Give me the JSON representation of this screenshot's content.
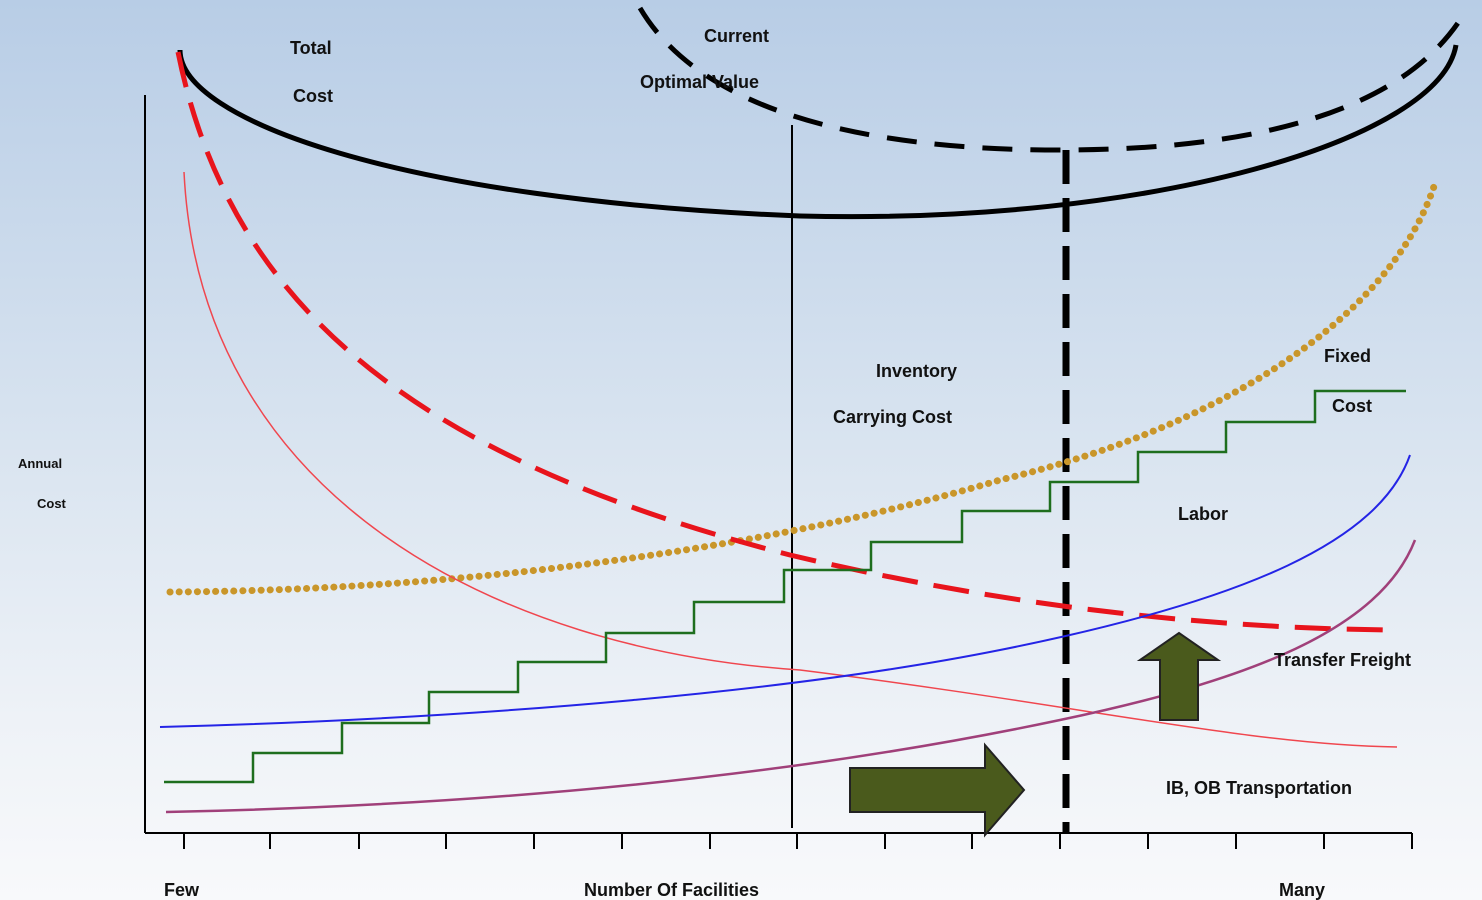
{
  "labels": {
    "total_cost_line1": "Total",
    "total_cost_line2": "Cost",
    "current_line1": "Current",
    "optimal_value": "Optimal Value",
    "inventory_line1": "Inventory",
    "inventory_line2": "Carrying Cost",
    "fixed_line1": "Fixed",
    "fixed_line2": "Cost",
    "labor": "Labor",
    "transfer_freight": "Transfer Freight",
    "ib_ob": "IB, OB Transportation",
    "y_axis_line1": "Annual",
    "y_axis_line2": "Cost",
    "x_axis_left": "Few",
    "x_axis_center": "Number Of Facilities",
    "x_axis_right": "Many"
  },
  "colors": {
    "total_cost": "#000000",
    "transport_dashed": "#e8141c",
    "transport_thin": "#f0464e",
    "inventory_dotted": "#c9962a",
    "fixed_step": "#1e6e1e",
    "labor": "#2424e6",
    "transfer_freight": "#a0407a",
    "arrow_fill": "#4a5a1c",
    "arrow_stroke": "#222222"
  }
}
